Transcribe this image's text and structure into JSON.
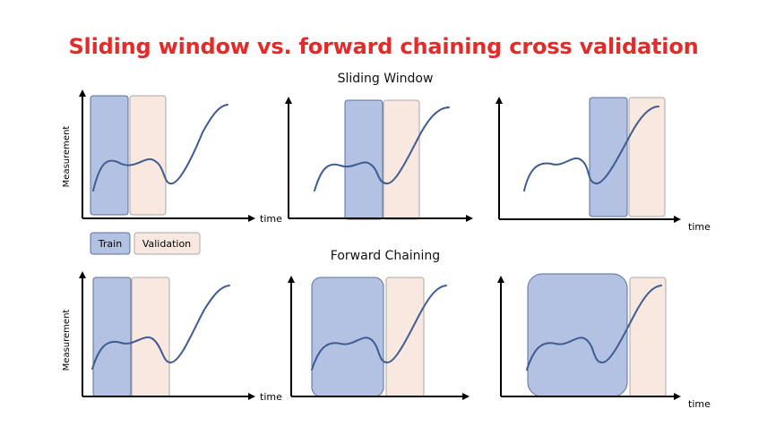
{
  "title": "Sliding window vs. forward chaining cross validation",
  "sections": [
    {
      "id": "sliding",
      "title": "Sliding Window"
    },
    {
      "id": "forward",
      "title": "Forward Chaining"
    }
  ],
  "axis": {
    "x_label": "time",
    "y_label": "Measurement"
  },
  "legend": {
    "train_label": "Train",
    "validation_label": "Validation"
  },
  "colors": {
    "title": "#e32b2b",
    "train_fill": "#b3c2e2",
    "train_stroke": "#5b6f9c",
    "validation_fill": "#f8e8df",
    "validation_stroke": "#a9a9a9",
    "curve": "#3e5c91",
    "axis": "#000000"
  }
}
